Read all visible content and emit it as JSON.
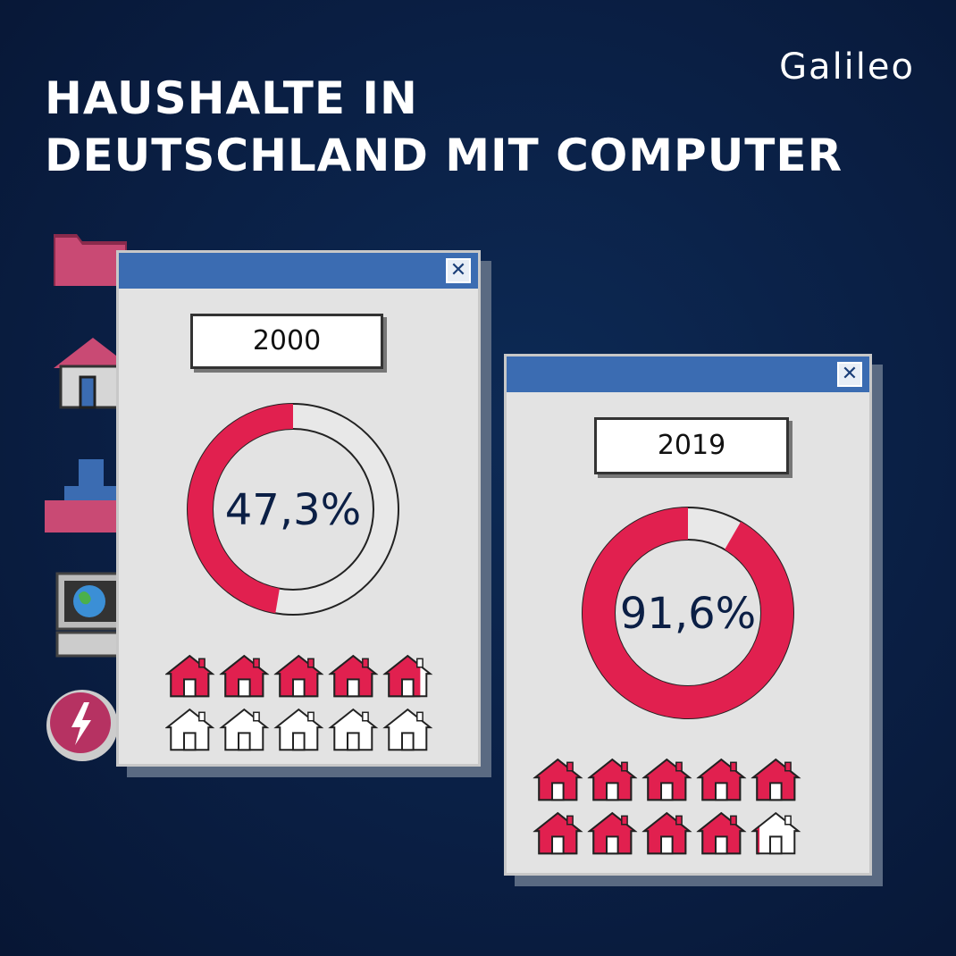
{
  "title": {
    "line1": "HAUSHALTE IN",
    "line2": "DEUTSCHLAND MIT COMPUTER"
  },
  "logo": "Galileo",
  "colors": {
    "accent": "#e1204f",
    "window_titlebar": "#3b6cb2",
    "text_dark": "#0b1f45"
  },
  "desktop_icons": [
    "folder-icon",
    "home-icon",
    "user-icon",
    "computer-icon",
    "lightning-icon"
  ],
  "close_icon": "close-icon",
  "chart_data": [
    {
      "type": "pie",
      "category": "2000",
      "value_label": "47,3%",
      "values": [
        47.3,
        52.7
      ],
      "houses_filled": 4.73,
      "houses_total": 10
    },
    {
      "type": "pie",
      "category": "2019",
      "value_label": "91,6%",
      "values": [
        91.6,
        8.4
      ],
      "houses_filled": 9.16,
      "houses_total": 10
    }
  ]
}
